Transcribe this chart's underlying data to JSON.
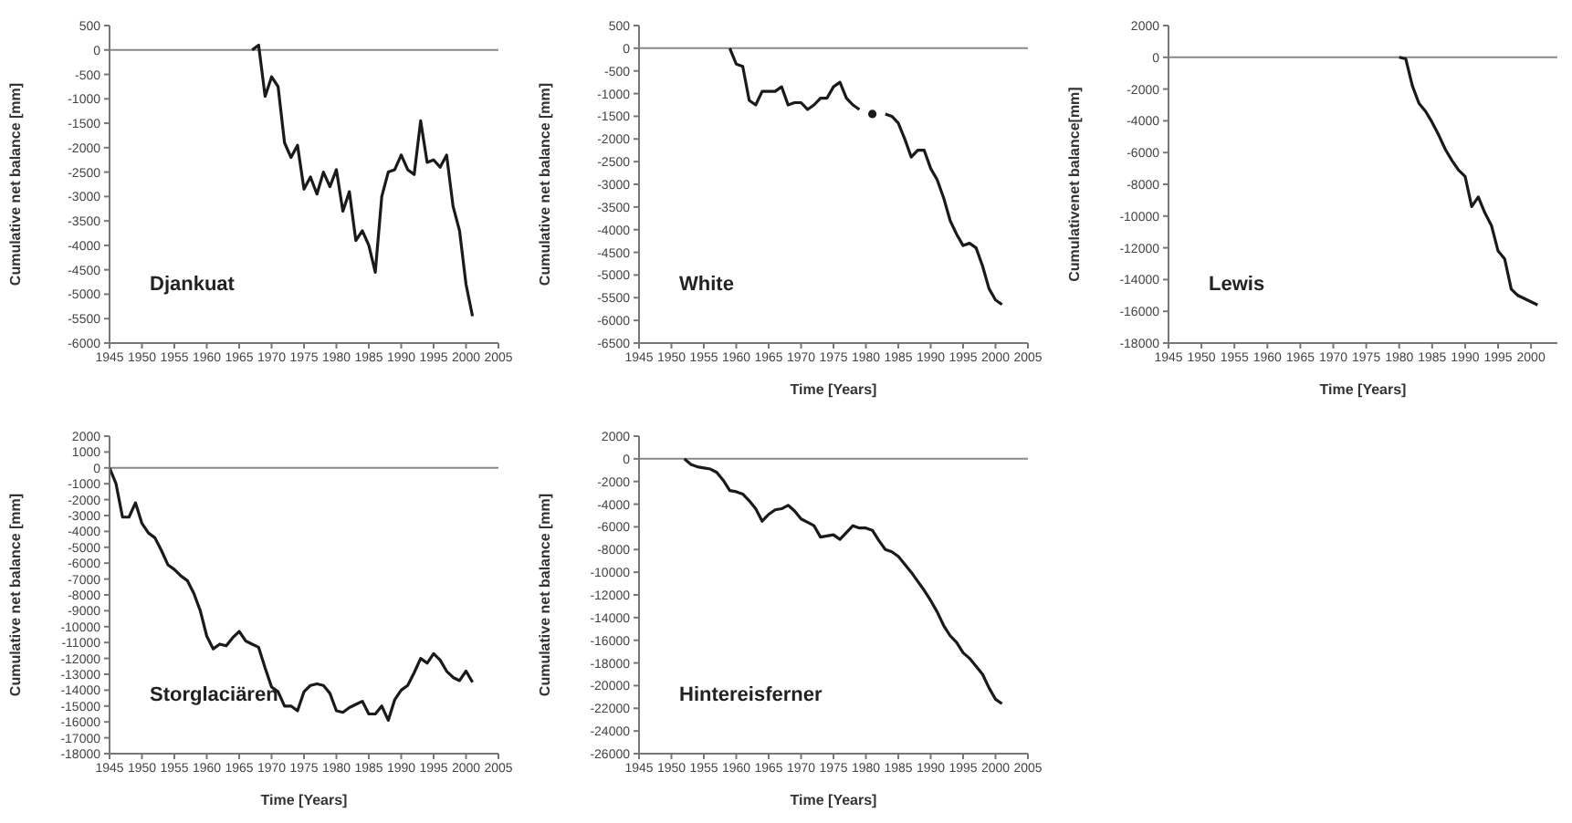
{
  "chart_data": [
    {
      "type": "line",
      "ylabel": "Cumulative net balance [mm]",
      "annotations": [
        "Djankuat"
      ],
      "xlim": [
        1945,
        2005
      ],
      "xticks": [
        1945,
        1950,
        1955,
        1960,
        1965,
        1970,
        1975,
        1980,
        1985,
        1990,
        1995,
        2000,
        2005
      ],
      "ylim": [
        -6000,
        500
      ],
      "yticks": [
        500,
        0,
        -500,
        -1000,
        -1500,
        -2000,
        -2500,
        -3000,
        -3500,
        -4000,
        -4500,
        -5000,
        -5500,
        -6000
      ],
      "grid": false,
      "ref_lines": [
        {
          "axis": "y",
          "value": 0,
          "color": "#888888"
        }
      ],
      "x": [
        1967,
        1968,
        1969,
        1970,
        1971,
        1972,
        1973,
        1974,
        1975,
        1976,
        1977,
        1978,
        1979,
        1980,
        1981,
        1982,
        1983,
        1984,
        1985,
        1986,
        1987,
        1988,
        1989,
        1990,
        1991,
        1992,
        1993,
        1994,
        1995,
        1996,
        1997,
        1998,
        1999,
        2000,
        2001
      ],
      "series": [
        {
          "color": "#1a1a1a",
          "values": [
            0,
            100,
            -950,
            -550,
            -750,
            -1900,
            -2200,
            -1950,
            -2850,
            -2600,
            -2950,
            -2500,
            -2800,
            -2450,
            -3300,
            -2900,
            -3900,
            -3700,
            -4000,
            -4550,
            -3000,
            -2500,
            -2450,
            -2150,
            -2450,
            -2550,
            -1450,
            -2300,
            -2250,
            -2400,
            -2150,
            -3200,
            -3700,
            -4800,
            -5450
          ]
        }
      ]
    },
    {
      "type": "line",
      "xlabel": "Time [Years]",
      "ylabel": "Cumulative net balance [mm]",
      "annotations": [
        "White"
      ],
      "xlim": [
        1945,
        2005
      ],
      "xticks": [
        1945,
        1950,
        1955,
        1960,
        1965,
        1970,
        1975,
        1980,
        1985,
        1990,
        1995,
        2000,
        2005
      ],
      "ylim": [
        -6500,
        500
      ],
      "yticks": [
        500,
        0,
        -500,
        -1000,
        -1500,
        -2000,
        -2500,
        -3000,
        -3500,
        -4000,
        -4500,
        -5000,
        -5500,
        -6000,
        -6500
      ],
      "grid": false,
      "ref_lines": [
        {
          "axis": "y",
          "value": 0,
          "color": "#888888"
        }
      ],
      "x": [
        1959,
        1960,
        1961,
        1962,
        1963,
        1964,
        1965,
        1966,
        1967,
        1968,
        1969,
        1970,
        1971,
        1972,
        1973,
        1974,
        1975,
        1976,
        1977,
        1978,
        1979,
        1980,
        1981,
        1982,
        1983,
        1984,
        1985,
        1986,
        1987,
        1988,
        1989,
        1990,
        1991,
        1992,
        1993,
        1994,
        1995,
        1996,
        1997,
        1998,
        1999,
        2000,
        2001
      ],
      "series": [
        {
          "color": "#1a1a1a",
          "values": [
            0,
            -350,
            -400,
            -1150,
            -1250,
            -950,
            -950,
            -950,
            -850,
            -1250,
            -1200,
            -1200,
            -1350,
            -1250,
            -1100,
            -1100,
            -850,
            -750,
            -1100,
            -1250,
            -1350,
            null,
            -1450,
            null,
            -1450,
            -1500,
            -1650,
            -2000,
            -2400,
            -2250,
            -2250,
            -2650,
            -2900,
            -3300,
            -3800,
            -4100,
            -4350,
            -4300,
            -4400,
            -4800,
            -5300,
            -5550,
            -5650
          ]
        }
      ]
    },
    {
      "type": "line",
      "xlabel": "Time [Years]",
      "ylabel": "Cumulativenet balance[mm]",
      "annotations": [
        "Lewis"
      ],
      "xlim": [
        1945,
        2004
      ],
      "xticks": [
        1945,
        1950,
        1955,
        1960,
        1965,
        1970,
        1975,
        1980,
        1985,
        1990,
        1995,
        2000
      ],
      "ylim": [
        -18000,
        2000
      ],
      "yticks": [
        2000,
        0,
        -2000,
        -4000,
        -6000,
        -8000,
        -10000,
        -12000,
        -14000,
        -16000,
        -18000
      ],
      "grid": false,
      "ref_lines": [
        {
          "axis": "y",
          "value": 0,
          "color": "#888888"
        }
      ],
      "x": [
        1980,
        1981,
        1982,
        1983,
        1984,
        1985,
        1986,
        1987,
        1988,
        1989,
        1990,
        1991,
        1992,
        1993,
        1994,
        1995,
        1996,
        1997,
        1998,
        1999,
        2000,
        2001
      ],
      "series": [
        {
          "color": "#1a1a1a",
          "values": [
            0,
            -100,
            -1800,
            -2900,
            -3400,
            -4100,
            -4900,
            -5800,
            -6500,
            -7100,
            -7500,
            -9400,
            -8800,
            -9800,
            -10600,
            -12200,
            -12700,
            -14600,
            -15000,
            -15200,
            -15400,
            -15600
          ]
        }
      ]
    },
    {
      "type": "line",
      "xlabel": "Time [Years]",
      "ylabel": "Cumulative net balance [mm]",
      "annotations": [
        "Storglaciären"
      ],
      "xlim": [
        1945,
        2005
      ],
      "xticks": [
        1945,
        1950,
        1955,
        1960,
        1965,
        1970,
        1975,
        1980,
        1985,
        1990,
        1995,
        2000,
        2005
      ],
      "ylim": [
        -18000,
        2000
      ],
      "yticks": [
        2000,
        1000,
        0,
        -1000,
        -2000,
        -3000,
        -4000,
        -5000,
        -6000,
        -7000,
        -8000,
        -9000,
        -10000,
        -11000,
        -12000,
        -13000,
        -14000,
        -15000,
        -16000,
        -17000,
        -18000
      ],
      "grid": false,
      "ref_lines": [
        {
          "axis": "y",
          "value": 0,
          "color": "#888888"
        }
      ],
      "x": [
        1945,
        1946,
        1947,
        1948,
        1949,
        1950,
        1951,
        1952,
        1953,
        1954,
        1955,
        1956,
        1957,
        1958,
        1959,
        1960,
        1961,
        1962,
        1963,
        1964,
        1965,
        1966,
        1967,
        1968,
        1969,
        1970,
        1971,
        1972,
        1973,
        1974,
        1975,
        1976,
        1977,
        1978,
        1979,
        1980,
        1981,
        1982,
        1983,
        1984,
        1985,
        1986,
        1987,
        1988,
        1989,
        1990,
        1991,
        1992,
        1993,
        1994,
        1995,
        1996,
        1997,
        1998,
        1999,
        2000,
        2001
      ],
      "series": [
        {
          "color": "#1a1a1a",
          "values": [
            0,
            -1000,
            -3100,
            -3100,
            -2200,
            -3500,
            -4100,
            -4400,
            -5200,
            -6100,
            -6400,
            -6800,
            -7100,
            -7900,
            -9000,
            -10600,
            -11400,
            -11100,
            -11200,
            -10700,
            -10300,
            -10900,
            -11100,
            -11300,
            -12600,
            -13800,
            -14100,
            -15000,
            -15000,
            -15300,
            -14100,
            -13700,
            -13600,
            -13700,
            -14200,
            -15300,
            -15400,
            -15100,
            -14900,
            -14700,
            -15500,
            -15500,
            -15000,
            -15900,
            -14600,
            -14000,
            -13700,
            -12900,
            -12000,
            -12300,
            -11700,
            -12100,
            -12800,
            -13200,
            -13400,
            -12800,
            -13500
          ]
        }
      ]
    },
    {
      "type": "line",
      "xlabel": "Time [Years]",
      "ylabel": "Cumulative net balance [mm]",
      "annotations": [
        "Hintereisferner"
      ],
      "xlim": [
        1945,
        2005
      ],
      "xticks": [
        1945,
        1950,
        1955,
        1960,
        1965,
        1970,
        1975,
        1980,
        1985,
        1990,
        1995,
        2000,
        2005
      ],
      "ylim": [
        -26000,
        2000
      ],
      "yticks": [
        2000,
        0,
        -2000,
        -4000,
        -6000,
        -8000,
        -10000,
        -12000,
        -14000,
        -16000,
        -18000,
        -20000,
        -22000,
        -24000,
        -26000
      ],
      "grid": false,
      "ref_lines": [
        {
          "axis": "y",
          "value": 0,
          "color": "#888888"
        }
      ],
      "x": [
        1952,
        1953,
        1954,
        1955,
        1956,
        1957,
        1958,
        1959,
        1960,
        1961,
        1962,
        1963,
        1964,
        1965,
        1966,
        1967,
        1968,
        1969,
        1970,
        1971,
        1972,
        1973,
        1974,
        1975,
        1976,
        1977,
        1978,
        1979,
        1980,
        1981,
        1982,
        1983,
        1984,
        1985,
        1986,
        1987,
        1988,
        1989,
        1990,
        1991,
        1992,
        1993,
        1994,
        1995,
        1996,
        1997,
        1998,
        1999,
        2000,
        2001
      ],
      "series": [
        {
          "color": "#1a1a1a",
          "values": [
            0,
            -500,
            -700,
            -800,
            -900,
            -1200,
            -1900,
            -2800,
            -2900,
            -3100,
            -3700,
            -4400,
            -5500,
            -4900,
            -4500,
            -4400,
            -4100,
            -4600,
            -5300,
            -5600,
            -5900,
            -6900,
            -6800,
            -6700,
            -7100,
            -6500,
            -5900,
            -6100,
            -6100,
            -6300,
            -7200,
            -8000,
            -8200,
            -8600,
            -9300,
            -10000,
            -10800,
            -11600,
            -12500,
            -13500,
            -14700,
            -15600,
            -16200,
            -17100,
            -17600,
            -18300,
            -19000,
            -20200,
            -21200,
            -21600
          ]
        }
      ]
    }
  ]
}
